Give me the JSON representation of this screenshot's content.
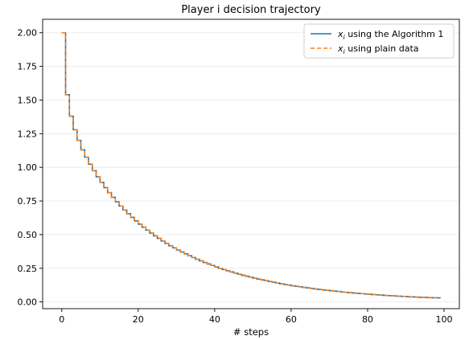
{
  "chart_data": {
    "type": "line",
    "title": "Player i decision trajectory",
    "xlabel": "# steps",
    "ylabel": "",
    "xlim": [
      -5,
      104
    ],
    "ylim": [
      -0.05,
      2.1
    ],
    "xticks": [
      0,
      20,
      40,
      60,
      80,
      100
    ],
    "yticks": [
      0.0,
      0.25,
      0.5,
      0.75,
      1.0,
      1.25,
      1.5,
      1.75,
      2.0
    ],
    "xtick_labels": [
      "0",
      "20",
      "40",
      "60",
      "80",
      "100"
    ],
    "ytick_labels": [
      "0.00",
      "0.25",
      "0.50",
      "0.75",
      "1.00",
      "1.25",
      "1.50",
      "1.75",
      "2.00"
    ],
    "grid": "horizontal",
    "legend_position": "top-right",
    "step": "post",
    "x": [
      0,
      1,
      2,
      3,
      4,
      5,
      6,
      7,
      8,
      9,
      10,
      11,
      12,
      13,
      14,
      15,
      16,
      17,
      18,
      19,
      20,
      21,
      22,
      23,
      24,
      25,
      26,
      27,
      28,
      29,
      30,
      31,
      32,
      33,
      34,
      35,
      36,
      37,
      38,
      39,
      40,
      41,
      42,
      43,
      44,
      45,
      46,
      47,
      48,
      49,
      50,
      51,
      52,
      53,
      54,
      55,
      56,
      57,
      58,
      59,
      60,
      61,
      62,
      63,
      64,
      65,
      66,
      67,
      68,
      69,
      70,
      71,
      72,
      73,
      74,
      75,
      76,
      77,
      78,
      79,
      80,
      81,
      82,
      83,
      84,
      85,
      86,
      87,
      88,
      89,
      90,
      91,
      92,
      93,
      94,
      95,
      96,
      97,
      98,
      99
    ],
    "series": [
      {
        "name": "$x_i$ using the Algorithm 1",
        "legend_var": "x",
        "legend_sub": "i",
        "legend_rest": " using the Algorithm 1",
        "color": "#1f77b4",
        "dash": "solid",
        "values": [
          2.0,
          1.54,
          1.38,
          1.28,
          1.2,
          1.13,
          1.075,
          1.023,
          0.975,
          0.93,
          0.888,
          0.849,
          0.812,
          0.777,
          0.744,
          0.713,
          0.683,
          0.655,
          0.628,
          0.602,
          0.578,
          0.555,
          0.533,
          0.512,
          0.491,
          0.472,
          0.453,
          0.435,
          0.418,
          0.402,
          0.386,
          0.371,
          0.357,
          0.343,
          0.33,
          0.317,
          0.305,
          0.293,
          0.282,
          0.271,
          0.26,
          0.25,
          0.241,
          0.232,
          0.223,
          0.214,
          0.206,
          0.198,
          0.191,
          0.184,
          0.177,
          0.17,
          0.164,
          0.158,
          0.152,
          0.146,
          0.14,
          0.135,
          0.13,
          0.125,
          0.12,
          0.116,
          0.112,
          0.108,
          0.104,
          0.1,
          0.096,
          0.093,
          0.089,
          0.086,
          0.083,
          0.08,
          0.077,
          0.074,
          0.071,
          0.069,
          0.066,
          0.064,
          0.062,
          0.059,
          0.057,
          0.055,
          0.053,
          0.051,
          0.049,
          0.047,
          0.046,
          0.044,
          0.042,
          0.041,
          0.039,
          0.038,
          0.037,
          0.035,
          0.034,
          0.033,
          0.032,
          0.031,
          0.03,
          0.029
        ]
      },
      {
        "name": "$x_i$ using plain data",
        "legend_var": "x",
        "legend_sub": "i",
        "legend_rest": " using plain data",
        "color": "#ff7f0e",
        "dash": "dashed",
        "values": [
          2.0,
          1.54,
          1.38,
          1.28,
          1.2,
          1.13,
          1.075,
          1.023,
          0.975,
          0.93,
          0.888,
          0.849,
          0.812,
          0.777,
          0.744,
          0.713,
          0.683,
          0.655,
          0.628,
          0.602,
          0.578,
          0.555,
          0.533,
          0.512,
          0.491,
          0.472,
          0.453,
          0.435,
          0.418,
          0.402,
          0.386,
          0.371,
          0.357,
          0.343,
          0.33,
          0.317,
          0.305,
          0.293,
          0.282,
          0.271,
          0.26,
          0.25,
          0.241,
          0.232,
          0.223,
          0.214,
          0.206,
          0.198,
          0.191,
          0.184,
          0.177,
          0.17,
          0.164,
          0.158,
          0.152,
          0.146,
          0.14,
          0.135,
          0.13,
          0.125,
          0.12,
          0.116,
          0.112,
          0.108,
          0.104,
          0.1,
          0.096,
          0.093,
          0.089,
          0.086,
          0.083,
          0.08,
          0.077,
          0.074,
          0.071,
          0.069,
          0.066,
          0.064,
          0.062,
          0.059,
          0.057,
          0.055,
          0.053,
          0.051,
          0.049,
          0.047,
          0.046,
          0.044,
          0.042,
          0.041,
          0.039,
          0.038,
          0.037,
          0.035,
          0.034,
          0.033,
          0.032,
          0.031,
          0.03,
          0.029
        ]
      }
    ]
  }
}
